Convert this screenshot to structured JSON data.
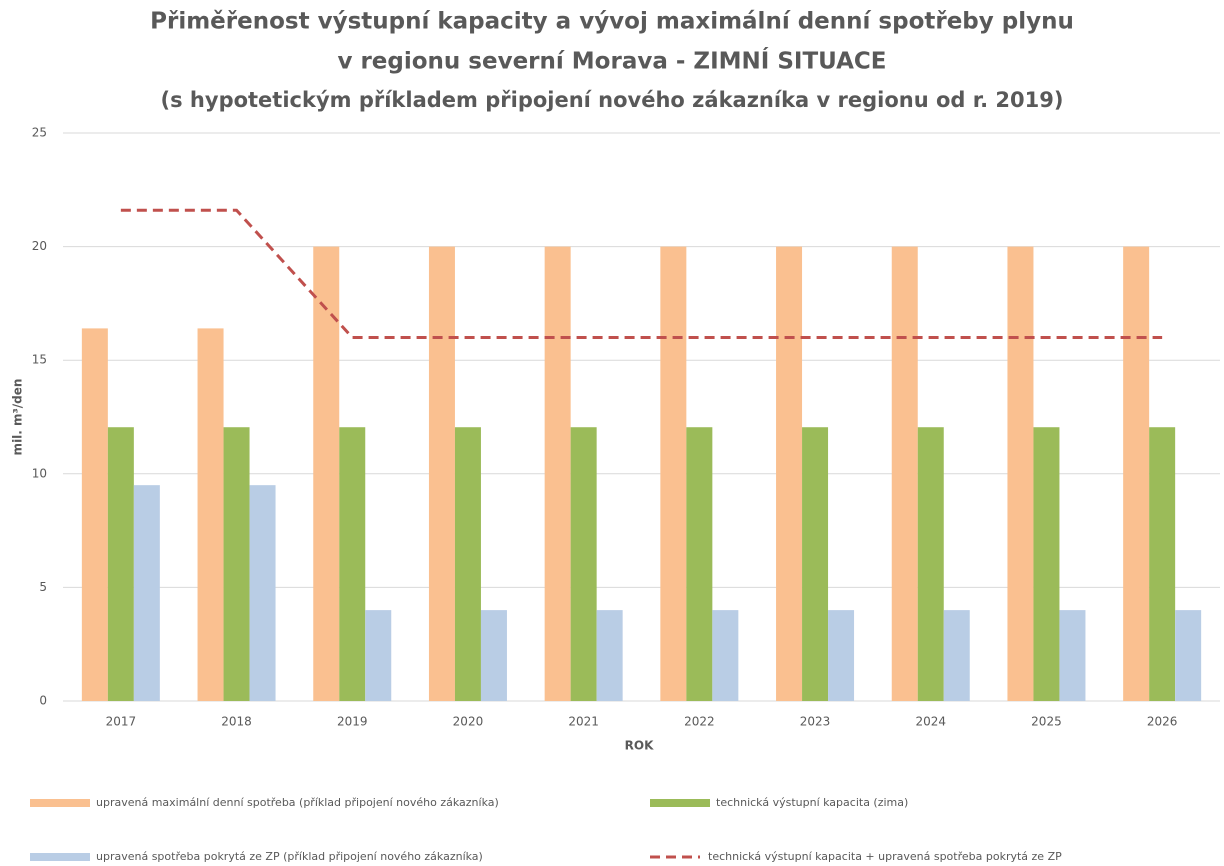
{
  "chart_data": {
    "type": "bar",
    "title": [
      "Přiměřenost výstupní kapacity a vývoj maximální denní spotřeby plynu",
      "v regionu severní Morava - ZIMNÍ SITUACE"
    ],
    "subtitle": "(s hypotetickým příkladem připojení nového zákazníka v regionu od r. 2019)",
    "x_label": "ROK",
    "y_label": "mil. m³/den",
    "categories": [
      "2017",
      "2018",
      "2019",
      "2020",
      "2021",
      "2022",
      "2023",
      "2024",
      "2025",
      "2026"
    ],
    "series": [
      {
        "name": "upravená maximální denní spotřeba (příklad připojení nového zákazníka)",
        "color": "#fac090",
        "type": "bar",
        "values": [
          16.4,
          16.4,
          20,
          20,
          20,
          20,
          20,
          20,
          20,
          20
        ]
      },
      {
        "name": "technická výstupní kapacita (zima)",
        "color": "#9bbb59",
        "type": "bar",
        "values": [
          12.05,
          12.05,
          12.05,
          12.05,
          12.05,
          12.05,
          12.05,
          12.05,
          12.05,
          12.05
        ]
      },
      {
        "name": "upravená spotřeba pokrytá ze ZP (příklad připojení nového zákazníka)",
        "color": "#b9cde5",
        "type": "bar",
        "values": [
          9.5,
          9.5,
          4,
          4,
          4,
          4,
          4,
          4,
          4,
          4
        ]
      },
      {
        "name": "technická výstupní kapacita + upravená spotřeba pokrytá ze ZP",
        "color": "#c0504d",
        "type": "line",
        "dashed": true,
        "values": [
          21.6,
          21.6,
          16,
          16,
          16,
          16,
          16,
          16,
          16,
          16
        ]
      }
    ],
    "ylim": [
      0,
      25
    ],
    "yticks": [
      0,
      5,
      10,
      15,
      20,
      25
    ],
    "grid": true,
    "legend": "bottom"
  }
}
